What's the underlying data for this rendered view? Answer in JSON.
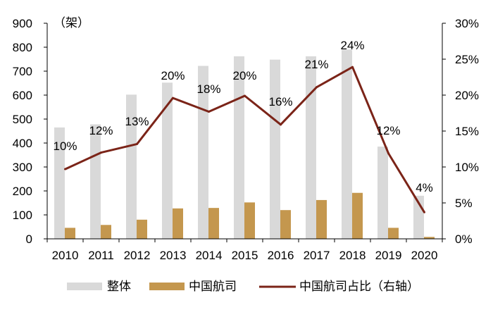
{
  "chart_data": {
    "type": "bar+line",
    "categories": [
      "2010",
      "2011",
      "2012",
      "2013",
      "2014",
      "2015",
      "2016",
      "2017",
      "2018",
      "2019",
      "2020"
    ],
    "series": [
      {
        "name": "整体",
        "type": "bar",
        "axis": "left",
        "color": "#d9d9d9",
        "values": [
          465,
          478,
          602,
          652,
          722,
          762,
          748,
          762,
          790,
          385,
          180
        ]
      },
      {
        "name": "中国航司",
        "type": "bar",
        "axis": "left",
        "color": "#c4974e",
        "values": [
          46,
          58,
          80,
          127,
          129,
          152,
          120,
          162,
          192,
          46,
          8
        ]
      },
      {
        "name": "中国航司占比（右轴）",
        "type": "line",
        "axis": "right",
        "color": "#7b2418",
        "values": [
          10,
          12,
          13,
          20,
          18,
          20,
          16,
          21,
          24,
          12,
          4
        ],
        "labels": [
          "10%",
          "12%",
          "13%",
          "20%",
          "18%",
          "20%",
          "16%",
          "21%",
          "24%",
          "12%",
          "4%"
        ],
        "points": [
          9.7,
          12.0,
          13.2,
          19.6,
          17.7,
          19.9,
          15.9,
          21.1,
          23.9,
          11.9,
          3.7
        ]
      }
    ],
    "left_axis": {
      "unit_label": "（架）",
      "min": 0,
      "max": 900,
      "ticks": [
        "0",
        "100",
        "200",
        "300",
        "400",
        "500",
        "600",
        "700",
        "800",
        "900"
      ]
    },
    "right_axis": {
      "min": 0,
      "max": 30,
      "ticks": [
        "0%",
        "5%",
        "10%",
        "15%",
        "20%",
        "25%",
        "30%"
      ]
    },
    "grid": false,
    "legend_position": "bottom"
  },
  "colors": {
    "bar_total": "#d9d9d9",
    "bar_china": "#c4974e",
    "line": "#7b2418",
    "axis": "#000000"
  }
}
